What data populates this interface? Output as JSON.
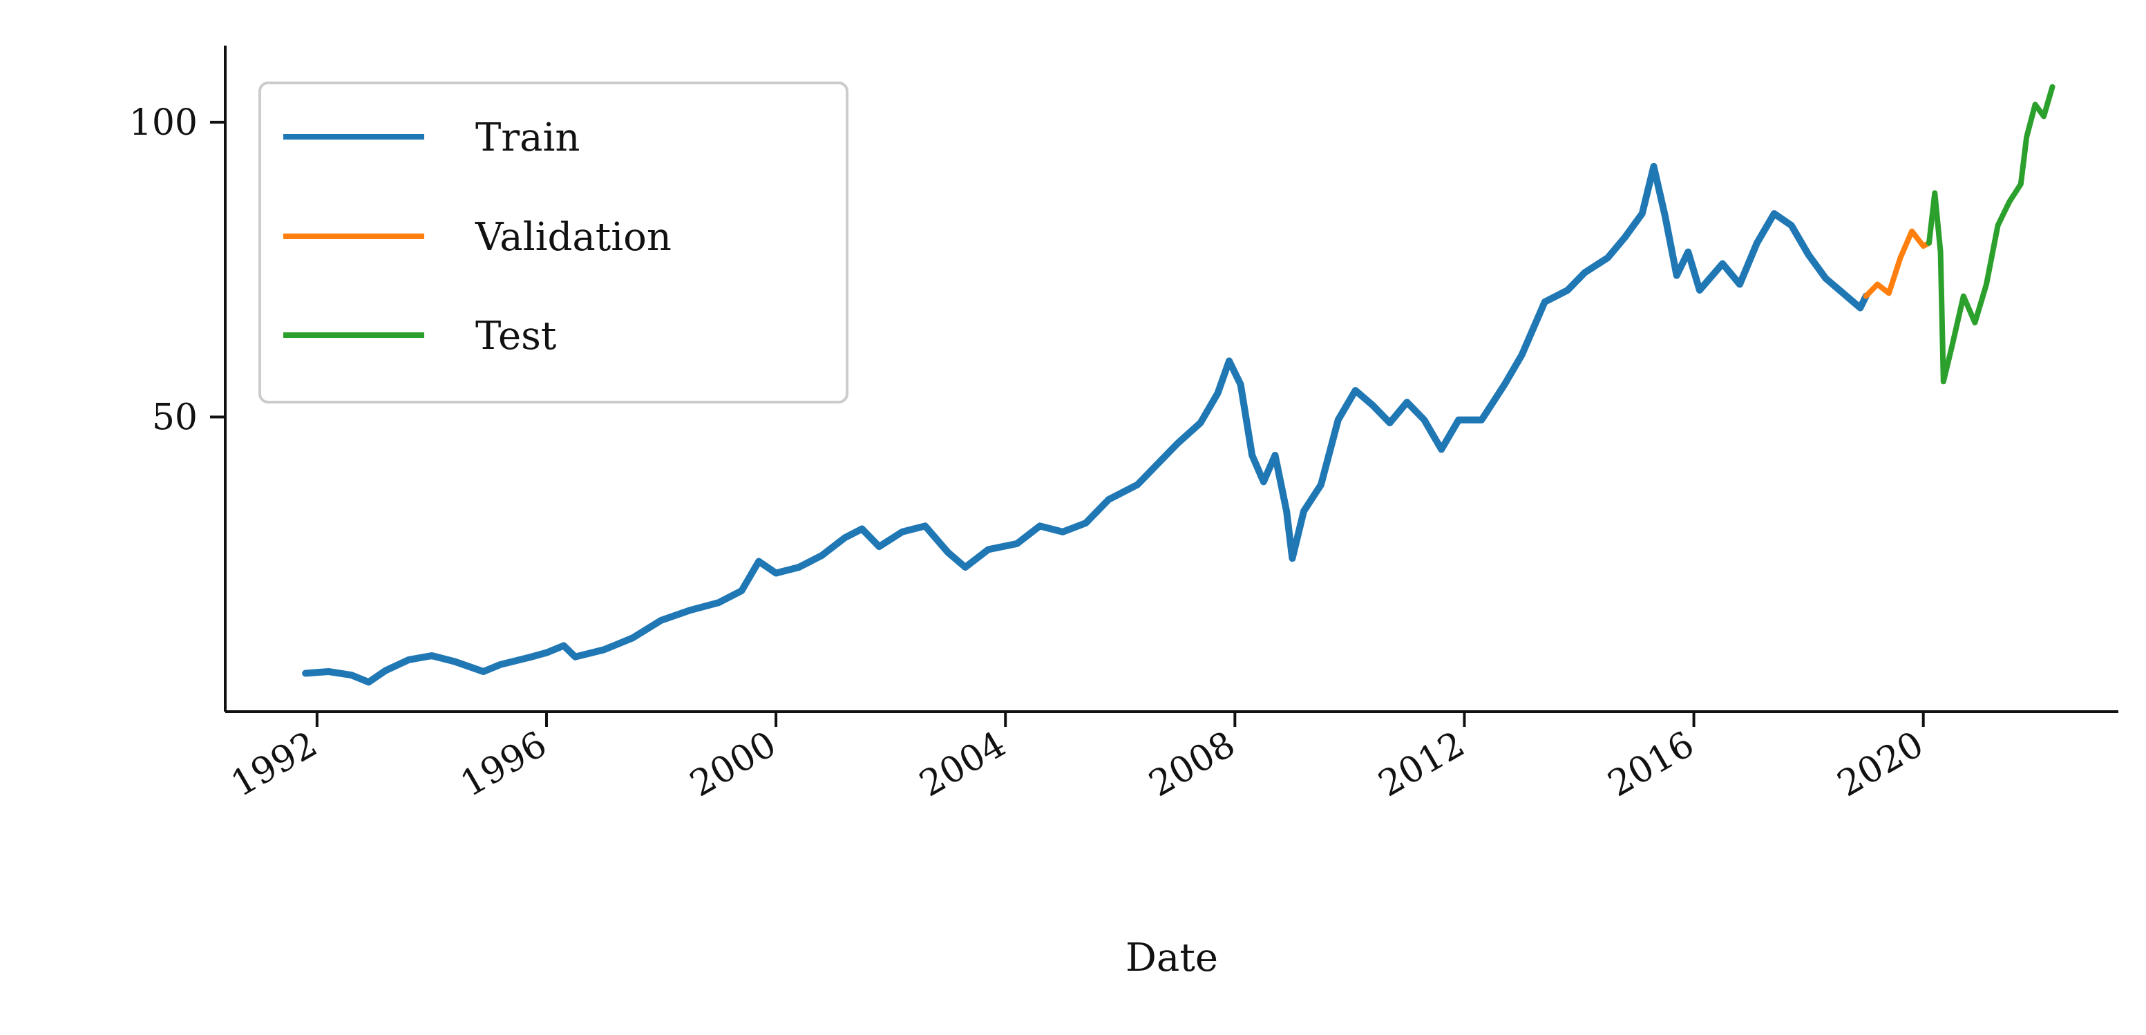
{
  "chart_data": {
    "type": "line",
    "title": "",
    "xlabel": "Date",
    "ylabel": "",
    "xlim": [
      1990.4,
      2023.4
    ],
    "ylim": [
      0,
      113
    ],
    "x_ticks": [
      1992,
      1996,
      2000,
      2004,
      2008,
      2012,
      2016,
      2020
    ],
    "x_tick_labels": [
      "1992",
      "1996",
      "2000",
      "2004",
      "2008",
      "2012",
      "2016",
      "2020"
    ],
    "y_ticks": [
      50,
      100
    ],
    "y_tick_labels": [
      "50",
      "100"
    ],
    "grid": false,
    "legend": "upper-left",
    "series": [
      {
        "name": "Train",
        "color": "#1f77b4",
        "points": [
          [
            1991.8,
            6.5
          ],
          [
            1992.2,
            6.8
          ],
          [
            1992.6,
            6.2
          ],
          [
            1992.9,
            5.0
          ],
          [
            1993.2,
            7.0
          ],
          [
            1993.6,
            8.8
          ],
          [
            1994.0,
            9.5
          ],
          [
            1994.4,
            8.5
          ],
          [
            1994.9,
            6.8
          ],
          [
            1995.2,
            8.0
          ],
          [
            1995.7,
            9.2
          ],
          [
            1996.0,
            10.0
          ],
          [
            1996.3,
            11.2
          ],
          [
            1996.5,
            9.3
          ],
          [
            1997.0,
            10.5
          ],
          [
            1997.5,
            12.5
          ],
          [
            1998.0,
            15.5
          ],
          [
            1998.5,
            17.2
          ],
          [
            1999.0,
            18.5
          ],
          [
            1999.4,
            20.5
          ],
          [
            1999.7,
            25.5
          ],
          [
            2000.0,
            23.5
          ],
          [
            2000.4,
            24.5
          ],
          [
            2000.8,
            26.5
          ],
          [
            2001.2,
            29.5
          ],
          [
            2001.5,
            31.0
          ],
          [
            2001.8,
            28.0
          ],
          [
            2002.2,
            30.5
          ],
          [
            2002.6,
            31.5
          ],
          [
            2003.0,
            27.0
          ],
          [
            2003.3,
            24.5
          ],
          [
            2003.7,
            27.5
          ],
          [
            2004.2,
            28.5
          ],
          [
            2004.6,
            31.5
          ],
          [
            2005.0,
            30.5
          ],
          [
            2005.4,
            32.0
          ],
          [
            2005.8,
            36.0
          ],
          [
            2006.3,
            38.5
          ],
          [
            2006.7,
            42.5
          ],
          [
            2007.0,
            45.5
          ],
          [
            2007.4,
            49.0
          ],
          [
            2007.7,
            54.0
          ],
          [
            2007.9,
            59.5
          ],
          [
            2008.1,
            55.5
          ],
          [
            2008.3,
            43.5
          ],
          [
            2008.5,
            39.0
          ],
          [
            2008.7,
            43.5
          ],
          [
            2008.9,
            34.0
          ],
          [
            2009.0,
            26.0
          ],
          [
            2009.2,
            34.0
          ],
          [
            2009.5,
            38.5
          ],
          [
            2009.8,
            49.5
          ],
          [
            2010.1,
            54.5
          ],
          [
            2010.4,
            52.0
          ],
          [
            2010.7,
            49.0
          ],
          [
            2011.0,
            52.5
          ],
          [
            2011.3,
            49.5
          ],
          [
            2011.6,
            44.5
          ],
          [
            2011.9,
            49.5
          ],
          [
            2012.3,
            49.5
          ],
          [
            2012.7,
            55.5
          ],
          [
            2013.0,
            60.5
          ],
          [
            2013.4,
            69.5
          ],
          [
            2013.8,
            71.5
          ],
          [
            2014.1,
            74.5
          ],
          [
            2014.5,
            77.0
          ],
          [
            2014.8,
            80.5
          ],
          [
            2015.1,
            84.5
          ],
          [
            2015.3,
            92.5
          ],
          [
            2015.5,
            84.0
          ],
          [
            2015.7,
            74.0
          ],
          [
            2015.9,
            78.0
          ],
          [
            2016.1,
            71.5
          ],
          [
            2016.5,
            76.0
          ],
          [
            2016.8,
            72.5
          ],
          [
            2017.1,
            79.5
          ],
          [
            2017.4,
            84.5
          ],
          [
            2017.7,
            82.5
          ],
          [
            2018.0,
            77.5
          ],
          [
            2018.3,
            73.5
          ],
          [
            2018.6,
            71.0
          ],
          [
            2018.9,
            68.5
          ],
          [
            2019.0,
            70.5
          ]
        ]
      },
      {
        "name": "Validation",
        "color": "#ff7f0e",
        "points": [
          [
            2019.0,
            70.5
          ],
          [
            2019.2,
            72.5
          ],
          [
            2019.4,
            71.0
          ],
          [
            2019.6,
            77.0
          ],
          [
            2019.8,
            81.5
          ],
          [
            2020.0,
            79.0
          ],
          [
            2020.1,
            79.5
          ]
        ]
      },
      {
        "name": "Test",
        "color": "#2ca02c",
        "points": [
          [
            2020.1,
            79.5
          ],
          [
            2020.2,
            88.0
          ],
          [
            2020.3,
            78.0
          ],
          [
            2020.35,
            56.0
          ],
          [
            2020.5,
            62.0
          ],
          [
            2020.7,
            70.5
          ],
          [
            2020.9,
            66.0
          ],
          [
            2021.1,
            72.5
          ],
          [
            2021.3,
            82.5
          ],
          [
            2021.5,
            86.5
          ],
          [
            2021.7,
            89.5
          ],
          [
            2021.8,
            97.5
          ],
          [
            2021.95,
            103.0
          ],
          [
            2022.1,
            101.0
          ],
          [
            2022.25,
            106.0
          ]
        ]
      }
    ]
  }
}
